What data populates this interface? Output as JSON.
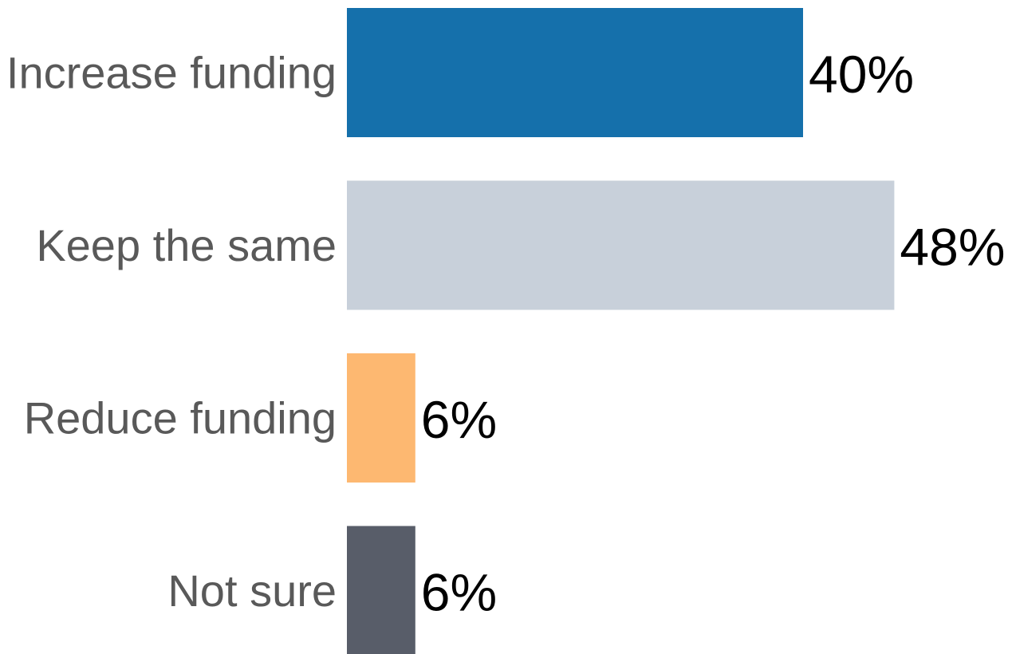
{
  "chart_data": {
    "type": "bar",
    "orientation": "horizontal",
    "categories": [
      "Increase funding",
      "Keep the same",
      "Reduce funding",
      "Not sure"
    ],
    "values": [
      40,
      48,
      6,
      6
    ],
    "value_labels": [
      "40%",
      "48%",
      "6%",
      "6%"
    ],
    "colors": [
      "#1570ab",
      "#c8d0da",
      "#fdb871",
      "#585d69"
    ],
    "title": "",
    "xlabel": "",
    "ylabel": "",
    "grid": false,
    "legend": "none"
  }
}
